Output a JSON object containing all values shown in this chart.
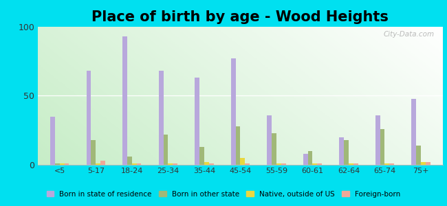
{
  "title": "Place of birth by age - Wood Heights",
  "categories": [
    "<5",
    "5-17",
    "18-24",
    "25-34",
    "35-44",
    "45-54",
    "55-59",
    "60-61",
    "62-64",
    "65-74",
    "75+"
  ],
  "series": {
    "Born in state of residence": [
      35,
      68,
      93,
      68,
      63,
      77,
      36,
      8,
      20,
      36,
      48
    ],
    "Born in other state": [
      1,
      18,
      6,
      22,
      13,
      28,
      23,
      10,
      18,
      26,
      14
    ],
    "Native, outside of US": [
      1,
      1,
      1,
      1,
      2,
      5,
      1,
      1,
      1,
      1,
      2
    ],
    "Foreign-born": [
      1,
      3,
      1,
      1,
      1,
      1,
      1,
      1,
      1,
      1,
      2
    ]
  },
  "colors": {
    "Born in state of residence": "#b8a8dc",
    "Born in other state": "#a0b878",
    "Native, outside of US": "#e8d840",
    "Foreign-born": "#f0a898"
  },
  "ylim": [
    0,
    100
  ],
  "yticks": [
    0,
    50,
    100
  ],
  "outer_bg": "#00e0f0",
  "title_fontsize": 15,
  "bar_width": 0.13
}
